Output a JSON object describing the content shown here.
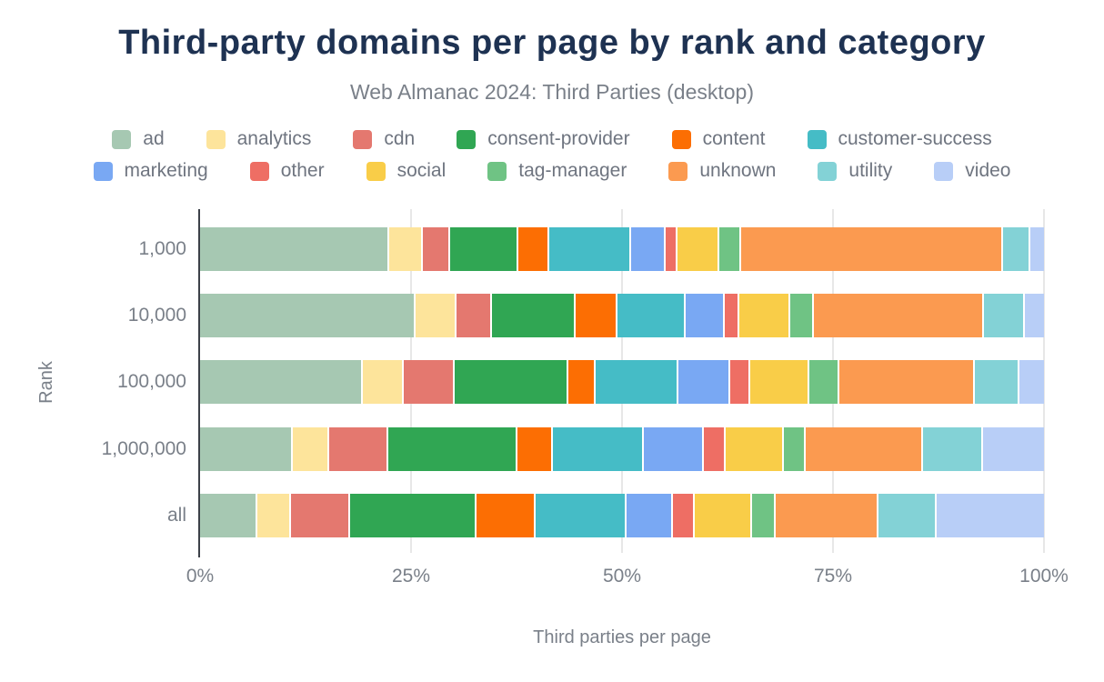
{
  "chart_data": {
    "type": "bar",
    "orientation": "horizontal",
    "stacked": true,
    "title": "Third-party domains per page by rank and category",
    "subtitle": "Web Almanac 2024: Third Parties (desktop)",
    "xlabel": "Third parties per page",
    "ylabel": "Rank",
    "unit": "%",
    "xlim": [
      0,
      100
    ],
    "xticks": [
      {
        "value": 0,
        "label": "0%"
      },
      {
        "value": 25,
        "label": "25%"
      },
      {
        "value": 50,
        "label": "50%"
      },
      {
        "value": 75,
        "label": "75%"
      },
      {
        "value": 100,
        "label": "100%"
      }
    ],
    "grid": "vertical",
    "legend_position": "top",
    "legend_rows": [
      6,
      7
    ],
    "categories": [
      "1,000",
      "10,000",
      "100,000",
      "1,000,000",
      "all"
    ],
    "series": [
      {
        "name": "ad",
        "color": "#a6c8b2",
        "values": [
          22.4,
          25.5,
          19.3,
          11.0,
          6.8
        ]
      },
      {
        "name": "analytics",
        "color": "#fde49b",
        "values": [
          4.0,
          4.9,
          4.8,
          4.3,
          4.0
        ]
      },
      {
        "name": "cdn",
        "color": "#e4786f",
        "values": [
          3.2,
          4.2,
          6.1,
          7.0,
          7.0
        ]
      },
      {
        "name": "consent-provider",
        "color": "#30a653",
        "values": [
          8.1,
          9.9,
          13.5,
          15.3,
          15.0
        ]
      },
      {
        "name": "content",
        "color": "#fc6e03",
        "values": [
          3.7,
          5.0,
          3.2,
          4.2,
          7.0
        ]
      },
      {
        "name": "customer-success",
        "color": "#45bcc6",
        "values": [
          9.7,
          8.0,
          9.8,
          10.8,
          10.7
        ]
      },
      {
        "name": "marketing",
        "color": "#79a8f3",
        "values": [
          4.1,
          4.7,
          6.1,
          7.1,
          5.5
        ]
      },
      {
        "name": "other",
        "color": "#ee6e64",
        "values": [
          1.4,
          1.7,
          2.4,
          2.6,
          2.6
        ]
      },
      {
        "name": "social",
        "color": "#f9cd48",
        "values": [
          4.9,
          6.0,
          7.0,
          6.9,
          6.8
        ]
      },
      {
        "name": "tag-manager",
        "color": "#6fc384",
        "values": [
          2.6,
          2.8,
          3.6,
          2.6,
          2.8
        ]
      },
      {
        "name": "unknown",
        "color": "#fb9a50",
        "values": [
          31.1,
          20.2,
          16.0,
          13.9,
          12.2
        ]
      },
      {
        "name": "utility",
        "color": "#83d2d6",
        "values": [
          3.2,
          4.9,
          5.3,
          7.1,
          6.9
        ]
      },
      {
        "name": "video",
        "color": "#b8cef7",
        "values": [
          1.6,
          2.2,
          2.9,
          7.2,
          12.7
        ]
      }
    ]
  }
}
